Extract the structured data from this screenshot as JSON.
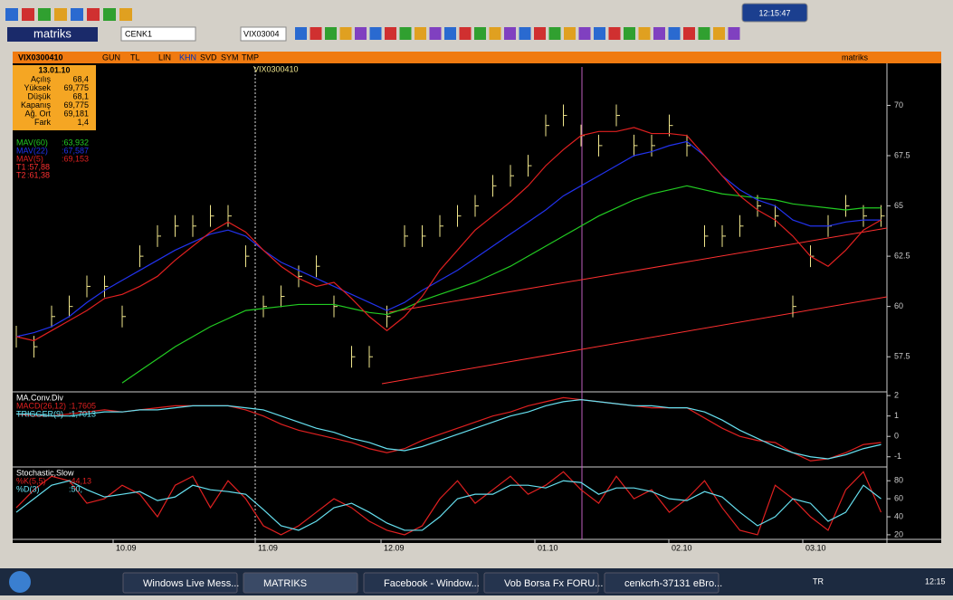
{
  "toolbar": {
    "logo": "matriks",
    "account": "CENK1",
    "symbol": "VIX03004",
    "clock": "12:15:47"
  },
  "chart_window": {
    "symbol": "VIX0300410",
    "tabs": [
      "GUN",
      "TL",
      "LIN",
      "KHN",
      "SVD",
      "SYM",
      "TMP"
    ],
    "logo": "matriks"
  },
  "info_box": {
    "date": "13.01.10",
    "rows": [
      [
        "Açılış",
        "68,4"
      ],
      [
        "Yüksek",
        "69,775"
      ],
      [
        "Düşük",
        "68,1"
      ],
      [
        "Kapanış",
        "69,775"
      ],
      [
        "Ağ. Ort",
        "69,181"
      ],
      [
        "Fark",
        "1,4"
      ]
    ]
  },
  "price_panel": {
    "label": "VIX0300410",
    "ylim": [
      55.8,
      72
    ],
    "yticks": [
      57.5,
      60,
      62.5,
      65,
      67.5,
      70
    ],
    "close_color": "#f0e68c",
    "close": [
      58.5,
      58,
      59.5,
      60,
      61,
      61,
      59.5,
      62.5,
      63.5,
      64,
      64,
      64.5,
      64.5,
      62.5,
      60,
      60.5,
      61.5,
      62,
      60,
      57.5,
      57.5,
      59.5,
      63.5,
      63.5,
      64,
      64.5,
      65,
      66,
      66.5,
      67,
      69,
      69.5,
      68.5,
      68,
      69.5,
      68,
      68,
      69,
      68,
      63.5,
      63.5,
      64,
      65,
      64.5,
      60,
      62.5,
      64,
      65,
      64.5,
      64.5
    ],
    "series": [
      {
        "name": "MAV(60)",
        "legend_value": ":63,932",
        "color": "#22cc22",
        "values": [
          null,
          null,
          null,
          null,
          null,
          null,
          56.2,
          56.8,
          57.4,
          58,
          58.5,
          59,
          59.4,
          59.8,
          59.9,
          60,
          60.1,
          60.1,
          60.1,
          59.9,
          59.7,
          59.6,
          59.9,
          60.3,
          60.6,
          60.9,
          61.2,
          61.6,
          62,
          62.5,
          63,
          63.5,
          64,
          64.5,
          64.9,
          65.3,
          65.6,
          65.8,
          66,
          65.8,
          65.6,
          65.5,
          65.4,
          65.3,
          65.1,
          65,
          64.9,
          64.8,
          64.9,
          64.9
        ]
      },
      {
        "name": "MAV(22)",
        "legend_value": ":67,587",
        "color": "#2233ee",
        "values": [
          58.5,
          58.7,
          59,
          59.5,
          60.2,
          60.8,
          61.3,
          61.8,
          62.3,
          62.8,
          63.2,
          63.6,
          63.8,
          63.5,
          62.8,
          62.2,
          61.8,
          61.4,
          61,
          60.6,
          60.2,
          59.8,
          60.2,
          60.8,
          61.3,
          61.8,
          62.4,
          63,
          63.6,
          64.2,
          64.8,
          65.5,
          66,
          66.5,
          67,
          67.5,
          67.7,
          68,
          68.2,
          67.5,
          66.5,
          65.8,
          65.3,
          65,
          64.3,
          64,
          64,
          64.2,
          64.3,
          64.3
        ]
      },
      {
        "name": "MAV(5)",
        "legend_value": ":69,153",
        "color": "#e02020",
        "values": [
          58.5,
          58.3,
          58.8,
          59.3,
          59.8,
          60.4,
          60.6,
          61,
          61.5,
          62.3,
          63,
          63.7,
          64.2,
          63.7,
          62.8,
          62,
          61.4,
          61,
          61.2,
          60.4,
          59.5,
          58.8,
          59.5,
          60.5,
          61.8,
          62.8,
          63.8,
          64.5,
          65.2,
          66,
          67,
          67.8,
          68.5,
          68.7,
          68.7,
          68.9,
          68.6,
          68.6,
          68.5,
          67.5,
          66.5,
          65.5,
          64.8,
          64.3,
          63.5,
          62.5,
          62,
          62.8,
          63.8,
          64.3
        ]
      }
    ],
    "trendlines": [
      {
        "name": "T1",
        "legend_value": ":57,88",
        "color": "#ff3030"
      },
      {
        "name": "T2",
        "legend_value": ":61,38",
        "color": "#ff3030"
      }
    ]
  },
  "macd_panel": {
    "title": "MA.Conv.Div",
    "ylim": [
      -1.41,
      2.05
    ],
    "yticks": [
      -1,
      0,
      1,
      2
    ],
    "series": [
      {
        "name": "MACD(26,12)",
        "legend_value": ":1,7605",
        "color": "#e02020",
        "values": [
          1.1,
          1.0,
          1.0,
          1.1,
          1.2,
          1.3,
          1.2,
          1.3,
          1.4,
          1.5,
          1.5,
          1.5,
          1.5,
          1.3,
          1.0,
          0.6,
          0.3,
          0.1,
          -0.1,
          -0.3,
          -0.6,
          -0.8,
          -0.6,
          -0.2,
          0.1,
          0.4,
          0.7,
          1.0,
          1.2,
          1.5,
          1.7,
          1.9,
          1.8,
          1.7,
          1.6,
          1.5,
          1.4,
          1.4,
          1.4,
          0.9,
          0.4,
          0.0,
          -0.2,
          -0.3,
          -0.8,
          -1.2,
          -1.1,
          -0.8,
          -0.4,
          -0.3
        ]
      },
      {
        "name": "TRIGGER(9)",
        "legend_value": ":1,7013",
        "color": "#66e0f0",
        "values": [
          1.1,
          1.1,
          1.0,
          1.0,
          1.1,
          1.2,
          1.2,
          1.3,
          1.3,
          1.4,
          1.5,
          1.5,
          1.5,
          1.4,
          1.3,
          1.0,
          0.7,
          0.4,
          0.2,
          -0.1,
          -0.3,
          -0.6,
          -0.7,
          -0.5,
          -0.2,
          0.1,
          0.4,
          0.7,
          1.0,
          1.2,
          1.5,
          1.7,
          1.8,
          1.7,
          1.6,
          1.5,
          1.5,
          1.4,
          1.4,
          1.2,
          0.8,
          0.3,
          -0.1,
          -0.5,
          -0.8,
          -1.0,
          -1.1,
          -0.9,
          -0.6,
          -0.4
        ]
      }
    ]
  },
  "stoch_panel": {
    "title": "Stochastic,Slow",
    "ylim": [
      14.9,
      93.3
    ],
    "yticks": [
      20,
      40,
      60,
      80
    ],
    "series": [
      {
        "name": "%K(5,5)",
        "legend_value": ":44,13",
        "color": "#e02020",
        "values": [
          50,
          70,
          85,
          80,
          55,
          60,
          75,
          65,
          40,
          75,
          85,
          50,
          80,
          60,
          30,
          20,
          30,
          45,
          60,
          50,
          35,
          25,
          20,
          30,
          60,
          80,
          55,
          70,
          85,
          65,
          75,
          90,
          70,
          55,
          85,
          60,
          70,
          45,
          60,
          80,
          50,
          25,
          20,
          75,
          60,
          40,
          25,
          70,
          90,
          45
        ]
      },
      {
        "name": "%D(3)",
        "legend_value": ":50,",
        "color": "#66e0f0",
        "values": [
          45,
          60,
          75,
          80,
          70,
          62,
          65,
          68,
          58,
          62,
          75,
          70,
          68,
          65,
          48,
          30,
          25,
          35,
          50,
          55,
          45,
          33,
          25,
          25,
          40,
          60,
          65,
          65,
          75,
          75,
          72,
          80,
          78,
          65,
          72,
          72,
          68,
          60,
          58,
          68,
          62,
          45,
          30,
          40,
          60,
          55,
          35,
          45,
          75,
          60
        ]
      }
    ]
  },
  "x_axis": {
    "labels": [
      "10.09",
      "11.09",
      "12.09",
      "01.10",
      "02.10",
      "03.10"
    ]
  },
  "taskbar": {
    "items": [
      "Windows Live Mess...",
      "MATRIKS",
      "Facebook - Window...",
      "Vob Borsa Fx FORU...",
      "cenkcrh-37131 eBro..."
    ],
    "lang": "TR",
    "clock": "12:15"
  }
}
